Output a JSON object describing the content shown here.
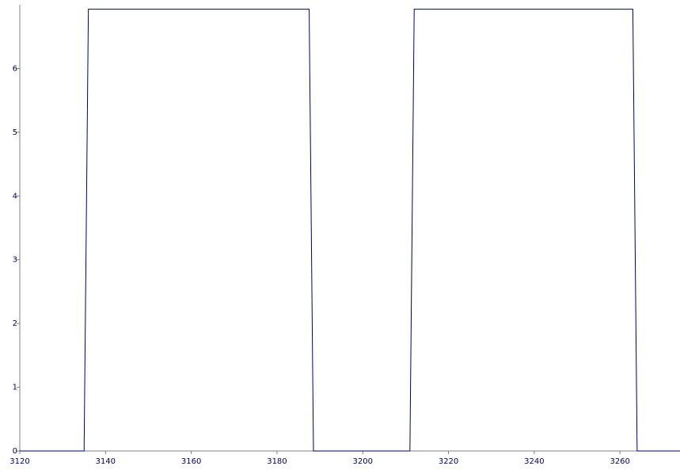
{
  "chart_data": {
    "type": "line",
    "title": "",
    "xlabel": "",
    "ylabel": "",
    "xlim": [
      3120,
      3274
    ],
    "ylim": [
      0,
      7
    ],
    "grid": false,
    "legend": "none",
    "x_ticks": [
      3120,
      3140,
      3160,
      3180,
      3200,
      3220,
      3240,
      3260
    ],
    "y_ticks": [
      0,
      1,
      2,
      3,
      4,
      5,
      6
    ],
    "series": [
      {
        "color": "#000066",
        "x": [
          3120,
          3135,
          3136,
          3187.5,
          3188.5,
          3211,
          3212,
          3263,
          3264,
          3274
        ],
        "y": [
          0,
          0,
          6.93,
          6.93,
          0,
          0,
          6.93,
          6.93,
          0,
          0
        ]
      }
    ]
  }
}
